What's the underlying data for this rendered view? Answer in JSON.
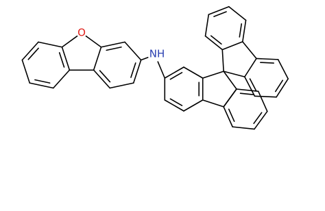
{
  "atoms": {
    "oxygen": "O",
    "amine": "NH"
  }
}
